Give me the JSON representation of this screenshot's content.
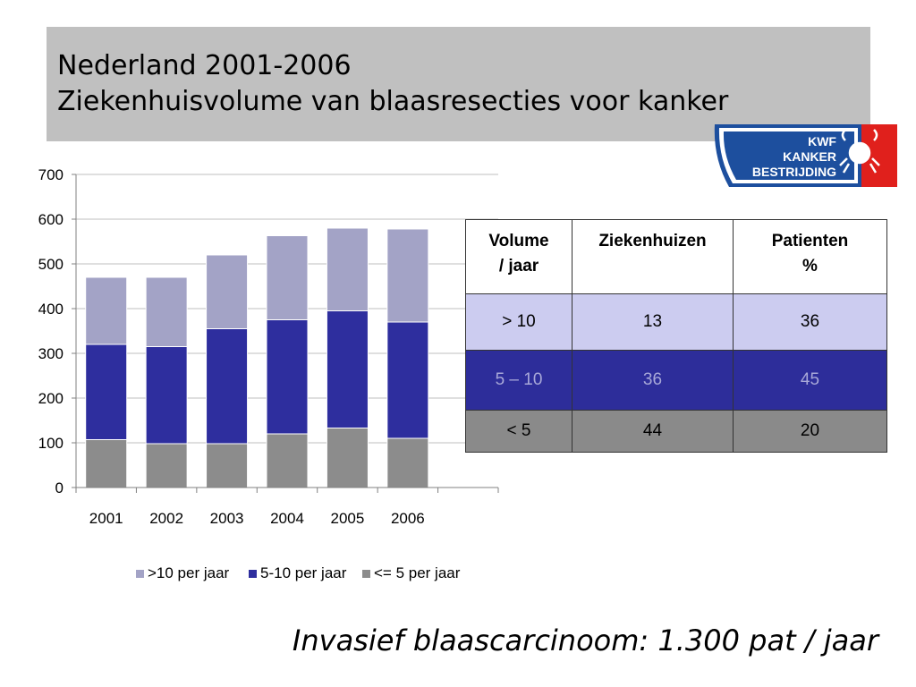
{
  "slide": {
    "title_line1": "Nederland 2001-2006",
    "title_line2": "Ziekenhuisvolume van blaasresecties voor kanker",
    "footer": "Invasief blaascarcinoom: 1.300 pat / jaar"
  },
  "logo": {
    "line1": "KWF",
    "line2": "KANKER",
    "line3": "BESTRIJDING",
    "colors": {
      "blue": "#1d4f9e",
      "red": "#e0201c"
    }
  },
  "chart_data": {
    "type": "bar",
    "stacked": true,
    "categories": [
      "2001",
      "2002",
      "2003",
      "2004",
      "2005",
      "2006"
    ],
    "series": [
      {
        "name": "<= 5 per jaar",
        "values": [
          107,
          98,
          98,
          120,
          133,
          110
        ],
        "color": "#8c8c8c"
      },
      {
        "name": "5-10 per jaar",
        "values": [
          213,
          217,
          257,
          255,
          262,
          260
        ],
        "color": "#2e2e9e"
      },
      {
        "name": ">10 per jaar",
        "values": [
          150,
          155,
          165,
          188,
          185,
          208
        ],
        "color": "#a3a3c6"
      }
    ],
    "legend_order": [
      ">10 per jaar",
      "5-10 per jaar",
      "<= 5 per jaar"
    ],
    "ylim": [
      0,
      700
    ],
    "yticks": [
      0,
      100,
      200,
      300,
      400,
      500,
      600,
      700
    ],
    "grid": true,
    "legend_position": "bottom"
  },
  "table": {
    "headers": [
      "Volume / jaar",
      "Ziekenhuizen",
      "Patienten %"
    ],
    "header_lines": [
      [
        "Volume",
        "/ jaar"
      ],
      [
        "Ziekenhuizen"
      ],
      [
        "Patienten",
        "%"
      ]
    ],
    "rows": [
      [
        "> 10",
        "13",
        "36"
      ],
      [
        "5 – 10",
        "36",
        "45"
      ],
      [
        "< 5",
        "44",
        "20"
      ]
    ]
  }
}
